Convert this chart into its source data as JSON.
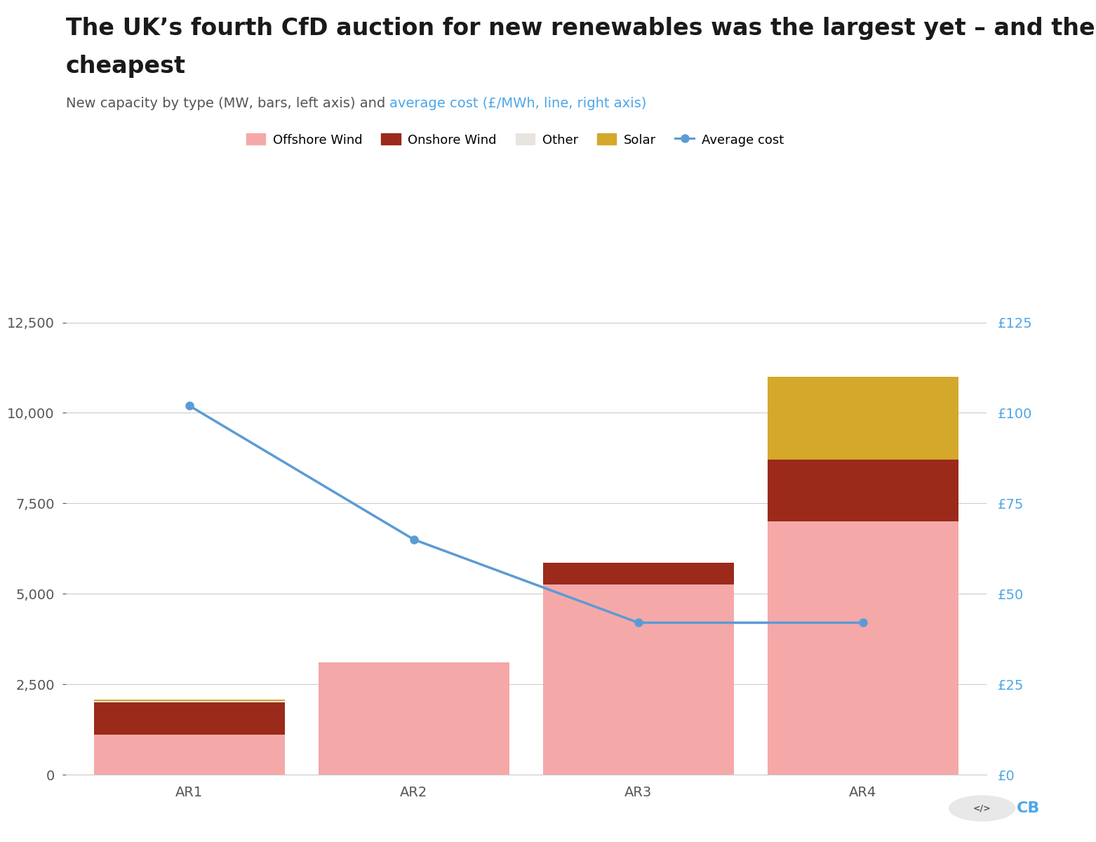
{
  "title_line1": "The UK’s fourth CfD auction for new renewables was the largest yet – and the joint",
  "title_line2": "cheapest",
  "subtitle_black": "New capacity by type (MW, bars, left axis) and ",
  "subtitle_blue": "average cost (£/MWh, line, right axis)",
  "categories": [
    "AR1",
    "AR2",
    "AR3",
    "AR4"
  ],
  "offshore_wind": [
    1100,
    3100,
    5250,
    7000
  ],
  "onshore_wind": [
    900,
    0,
    600,
    1700
  ],
  "other": [
    30,
    0,
    0,
    0
  ],
  "solar": [
    50,
    0,
    0,
    2300
  ],
  "avg_cost": [
    102,
    65,
    42,
    42
  ],
  "ylim_left": [
    0,
    13500
  ],
  "ylim_right": [
    0,
    135
  ],
  "yticks_left": [
    0,
    2500,
    5000,
    7500,
    10000,
    12500
  ],
  "yticks_right": [
    0,
    25,
    50,
    75,
    100,
    125
  ],
  "ytick_labels_right": [
    "£0",
    "£25",
    "£50",
    "£75",
    "£100",
    "£125"
  ],
  "color_offshore": "#F4A9A8",
  "color_onshore": "#9B2A1B",
  "color_other": "#E8E4E0",
  "color_solar": "#D4A82A",
  "color_avg_cost": "#5B9BD5",
  "color_title": "#1a1a1a",
  "color_subtitle_gray": "#555555",
  "color_subtitle_blue": "#4DA6E8",
  "bg_color": "#FFFFFF",
  "bar_width": 0.85,
  "title_fontsize": 24,
  "subtitle_fontsize": 14,
  "tick_fontsize": 14,
  "legend_fontsize": 13
}
